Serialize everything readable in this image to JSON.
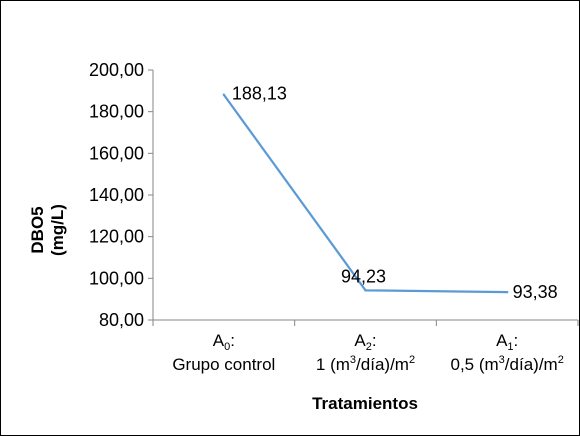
{
  "chart_data": {
    "type": "line",
    "categories": [
      {
        "main": "A",
        "sub": "0",
        "suffix": ":",
        "line2": "Grupo control"
      },
      {
        "main": "A",
        "sub": "2",
        "suffix": ":",
        "line2a": "1 (m",
        "sup1": "3",
        "line2b": "/día)/m",
        "sup2": "2"
      },
      {
        "main": "A",
        "sub": "1",
        "suffix": ":",
        "line2a": "0,5 (m",
        "sup1": "3",
        "line2b": "/día)/m",
        "sup2": "2"
      }
    ],
    "values": [
      188.13,
      94.23,
      93.38
    ],
    "data_labels": [
      "188,13",
      "94,23",
      "93,38"
    ],
    "ylim": [
      80,
      200
    ],
    "yticks": [
      "80,00",
      "100,00",
      "120,00",
      "140,00",
      "160,00",
      "180,00",
      "200,00"
    ],
    "ylabel_line1": "DBO5",
    "ylabel_line2": "(mg/L)",
    "xlabel": "Tratamientos",
    "line_color": "#5b9bd5",
    "grid": false,
    "legend": "none"
  }
}
